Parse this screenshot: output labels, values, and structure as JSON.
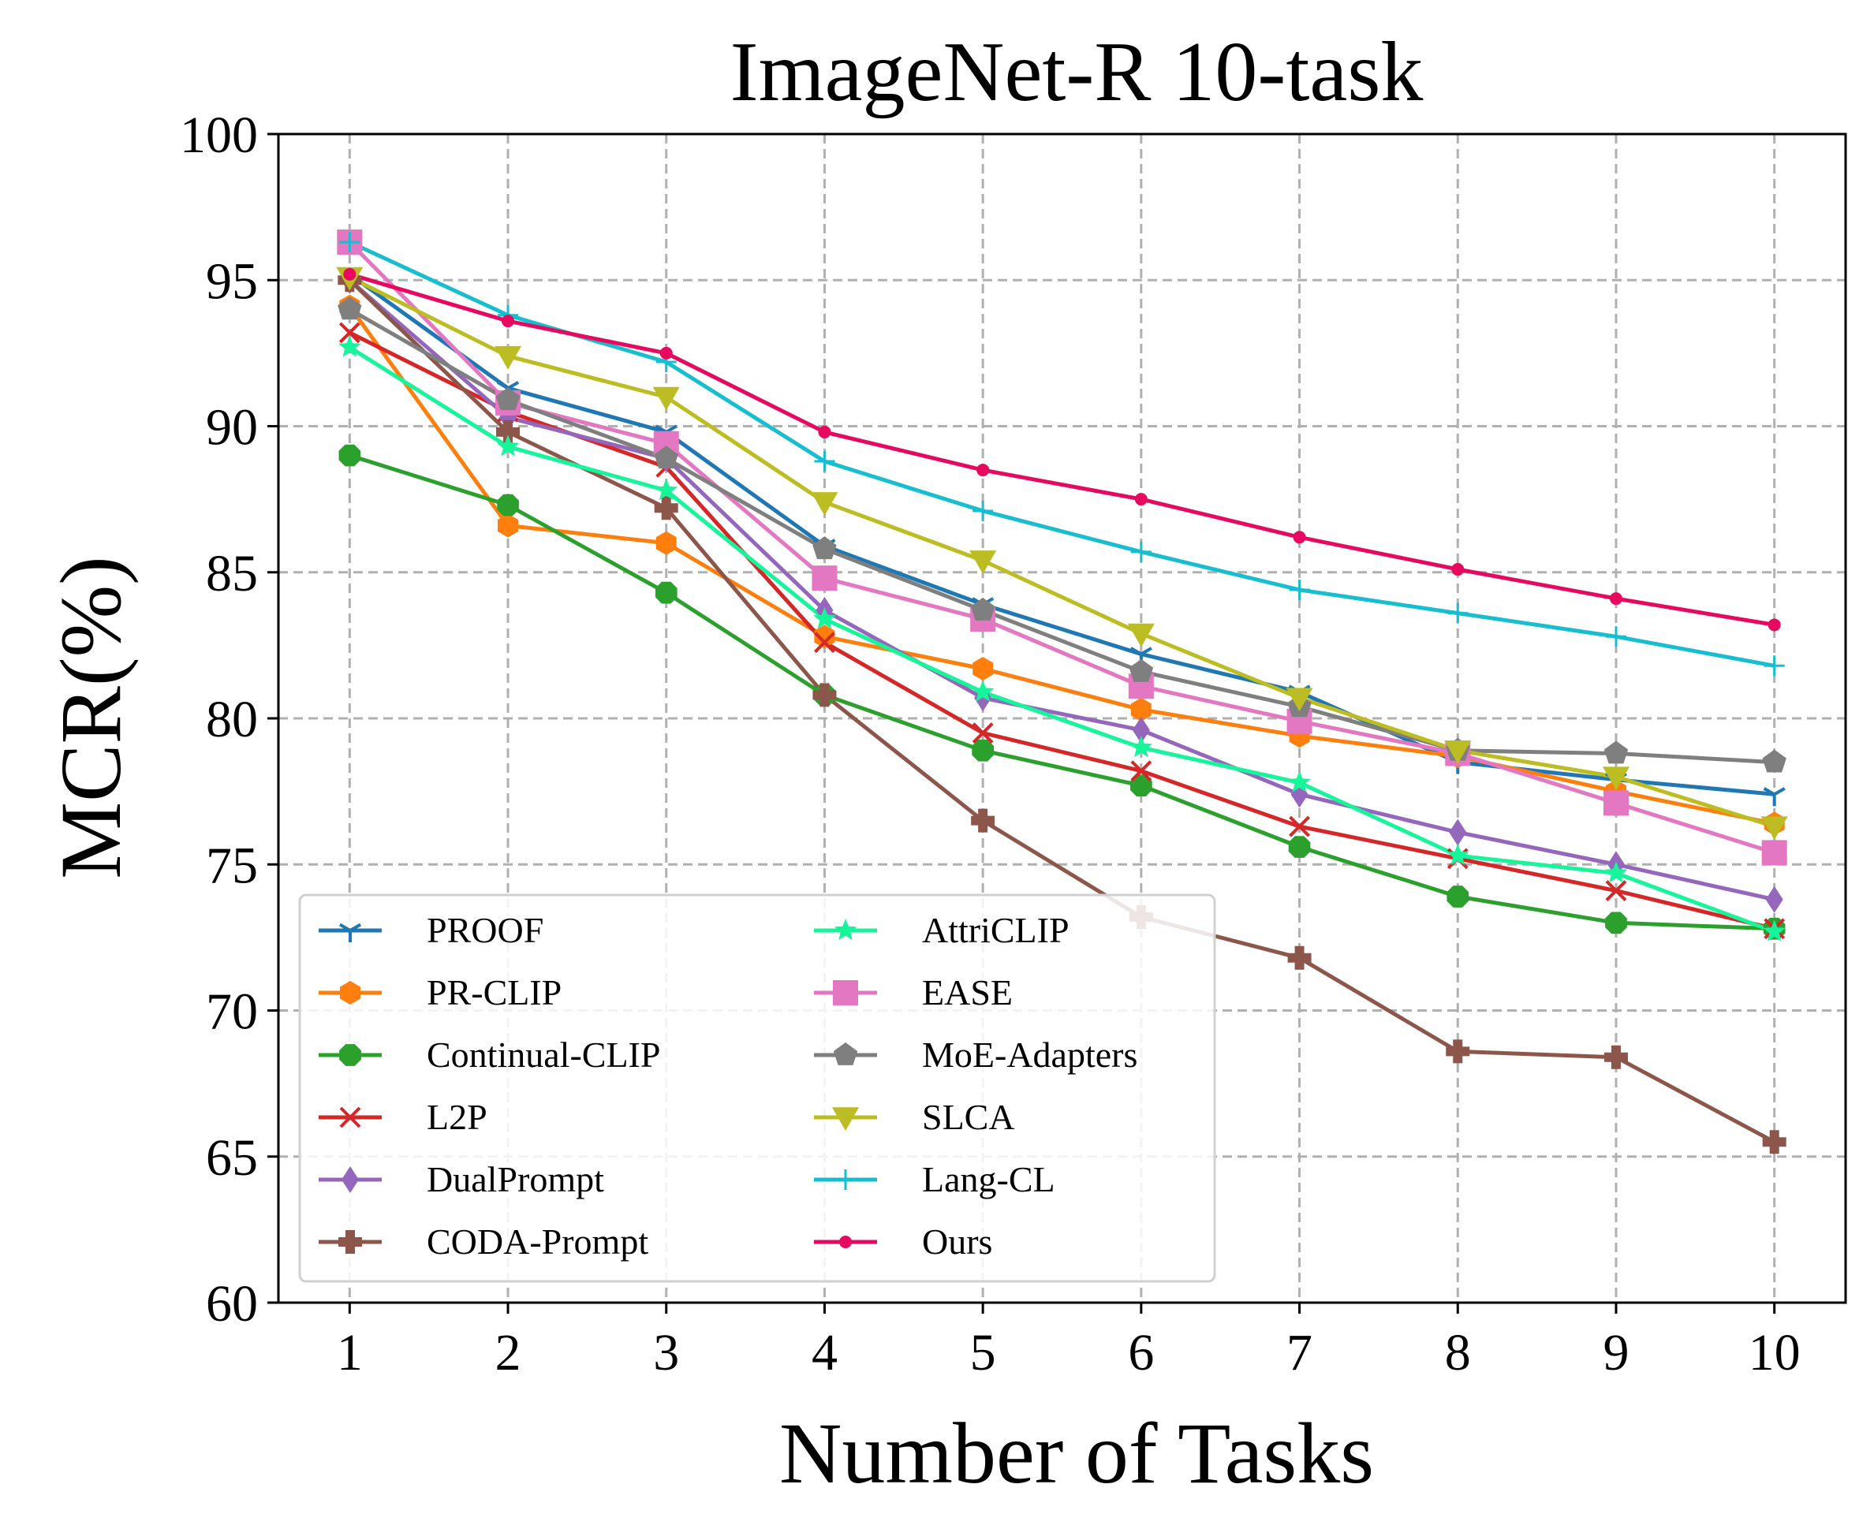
{
  "chart_data": {
    "type": "line",
    "title": "ImageNet-R 10-task",
    "xlabel": "Number of Tasks",
    "ylabel": "MCR(%)",
    "x": [
      1,
      2,
      3,
      4,
      5,
      6,
      7,
      8,
      9,
      10
    ],
    "x_tick_labels": [
      "1",
      "2",
      "3",
      "4",
      "5",
      "6",
      "7",
      "8",
      "9",
      "10"
    ],
    "xlim": [
      0.55,
      10.45
    ],
    "ylim": [
      60,
      100
    ],
    "y_ticks": [
      60,
      65,
      70,
      75,
      80,
      85,
      90,
      95,
      100
    ],
    "y_tick_labels": [
      "60",
      "65",
      "70",
      "75",
      "80",
      "85",
      "90",
      "95",
      "100"
    ],
    "grid": true,
    "legend_position": "lower-left",
    "legend_columns": 2,
    "series": [
      {
        "name": "PROOF",
        "color": "#1f77b4",
        "marker": "tri-down",
        "values": [
          95.2,
          91.3,
          89.8,
          85.9,
          83.9,
          82.2,
          80.9,
          78.5,
          77.9,
          77.4
        ]
      },
      {
        "name": "PR-CLIP",
        "color": "#ff7f0e",
        "marker": "hexagon",
        "values": [
          94.1,
          86.6,
          86.0,
          82.8,
          81.7,
          80.3,
          79.4,
          78.7,
          77.5,
          76.4
        ]
      },
      {
        "name": "Continual-CLIP",
        "color": "#2ca02c",
        "marker": "octagon",
        "values": [
          89.0,
          87.3,
          84.3,
          80.8,
          78.9,
          77.7,
          75.6,
          73.9,
          73.0,
          72.8
        ]
      },
      {
        "name": "L2P",
        "color": "#d62728",
        "marker": "x",
        "values": [
          93.2,
          90.5,
          88.6,
          82.6,
          79.5,
          78.2,
          76.3,
          75.2,
          74.1,
          72.8
        ]
      },
      {
        "name": "DualPrompt",
        "color": "#9467bd",
        "marker": "thin-diamond",
        "values": [
          95.0,
          90.3,
          88.9,
          83.7,
          80.7,
          79.6,
          77.4,
          76.1,
          75.0,
          73.8
        ]
      },
      {
        "name": "CODA-Prompt",
        "color": "#8c564b",
        "marker": "plus-filled",
        "values": [
          95.0,
          89.8,
          87.2,
          80.8,
          76.5,
          73.2,
          71.8,
          68.6,
          68.4,
          65.5
        ]
      },
      {
        "name": "AttriCLIP",
        "color": "#17f59b",
        "marker": "star",
        "values": [
          92.7,
          89.3,
          87.8,
          83.4,
          80.9,
          79.0,
          77.8,
          75.3,
          74.7,
          72.7
        ]
      },
      {
        "name": "EASE",
        "color": "#e377c2",
        "marker": "square",
        "values": [
          96.3,
          90.8,
          89.4,
          84.8,
          83.4,
          81.1,
          79.9,
          78.8,
          77.1,
          75.4
        ]
      },
      {
        "name": "MoE-Adapters",
        "color": "#7f7f7f",
        "marker": "pentagon",
        "values": [
          94.0,
          90.9,
          88.9,
          85.8,
          83.7,
          81.6,
          80.4,
          78.9,
          78.8,
          78.5
        ]
      },
      {
        "name": "SLCA",
        "color": "#bcbd22",
        "marker": "triangle-down",
        "values": [
          95.1,
          92.4,
          91.0,
          87.4,
          85.4,
          82.9,
          80.7,
          78.9,
          78.0,
          76.3
        ]
      },
      {
        "name": "Lang-CL",
        "color": "#17becf",
        "marker": "plus",
        "values": [
          96.3,
          93.8,
          92.2,
          88.8,
          87.1,
          85.7,
          84.4,
          83.6,
          82.8,
          81.8
        ]
      },
      {
        "name": "Ours",
        "color": "#e6095f",
        "marker": "point",
        "values": [
          95.2,
          93.6,
          92.5,
          89.8,
          88.5,
          87.5,
          86.2,
          85.1,
          84.1,
          83.2
        ]
      }
    ]
  }
}
